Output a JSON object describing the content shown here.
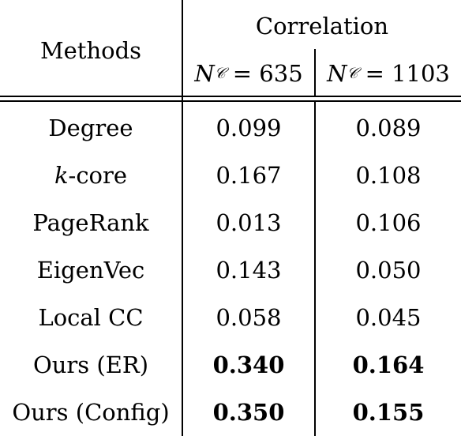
{
  "header": {
    "methods": "Methods",
    "correlation": "Correlation",
    "col1": {
      "var": "N",
      "sub": "𝒞",
      "value": "= 635"
    },
    "col2": {
      "var": "N",
      "sub": "𝒞",
      "value": "= 1103"
    }
  },
  "rows": [
    {
      "method": "Degree",
      "v1": "0.099",
      "v2": "0.089",
      "bold": false
    },
    {
      "method_italic": "k",
      "method": "-core",
      "v1": "0.167",
      "v2": "0.108",
      "bold": false
    },
    {
      "method": "PageRank",
      "v1": "0.013",
      "v2": "0.106",
      "bold": false
    },
    {
      "method": "EigenVec",
      "v1": "0.143",
      "v2": "0.050",
      "bold": false
    },
    {
      "method": "Local CC",
      "v1": "0.058",
      "v2": "0.045",
      "bold": false
    },
    {
      "method": "Ours (ER)",
      "v1": "0.340",
      "v2": "0.164",
      "bold": true
    },
    {
      "method": "Ours (Config)",
      "v1": "0.350",
      "v2": "0.155",
      "bold": true
    }
  ]
}
